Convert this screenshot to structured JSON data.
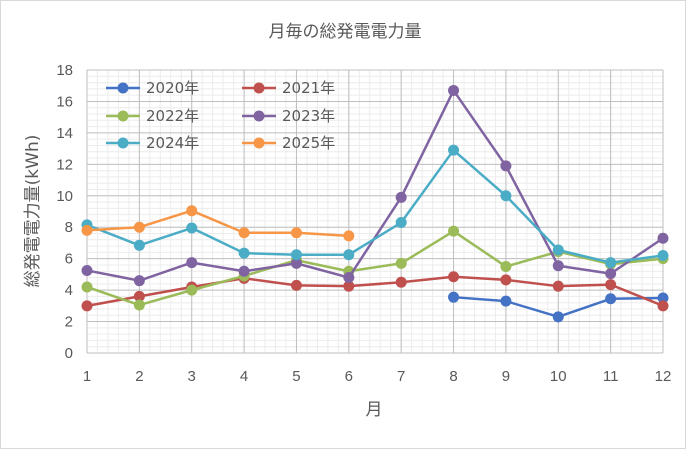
{
  "chart_data": {
    "type": "line",
    "title": "月毎の総発電電力量",
    "xlabel": "月",
    "ylabel": "総発電電力量(kWh)",
    "x": [
      1,
      2,
      3,
      4,
      5,
      6,
      7,
      8,
      9,
      10,
      11,
      12
    ],
    "xlim": [
      1,
      12
    ],
    "ylim": [
      0,
      18
    ],
    "yticks": [
      0,
      2,
      4,
      6,
      8,
      10,
      12,
      14,
      16,
      18
    ],
    "grid": true,
    "legend": "top-left",
    "series": [
      {
        "name": "2020年",
        "color": "#4472c4",
        "values": [
          null,
          null,
          null,
          null,
          null,
          null,
          null,
          3.55,
          3.3,
          2.3,
          3.45,
          3.5
        ]
      },
      {
        "name": "2021年",
        "color": "#c0504d",
        "values": [
          3.0,
          3.6,
          4.2,
          4.75,
          4.3,
          4.25,
          4.5,
          4.85,
          4.65,
          4.25,
          4.35,
          3.0
        ]
      },
      {
        "name": "2022年",
        "color": "#9bbb59",
        "values": [
          4.2,
          3.05,
          4.0,
          4.9,
          5.9,
          5.2,
          5.7,
          7.75,
          5.5,
          6.45,
          5.65,
          6.0
        ]
      },
      {
        "name": "2023年",
        "color": "#8064a2",
        "values": [
          5.25,
          4.6,
          5.75,
          5.2,
          5.7,
          4.8,
          9.9,
          16.7,
          11.9,
          5.55,
          5.05,
          7.3
        ]
      },
      {
        "name": "2024年",
        "color": "#4bacc6",
        "values": [
          8.15,
          6.85,
          7.95,
          6.35,
          6.25,
          6.25,
          8.3,
          12.9,
          10.0,
          6.55,
          5.75,
          6.2
        ]
      },
      {
        "name": "2025年",
        "color": "#f79646",
        "values": [
          7.8,
          8.0,
          9.05,
          7.65,
          7.65,
          7.45,
          null,
          null,
          null,
          null,
          null,
          null
        ]
      }
    ]
  }
}
